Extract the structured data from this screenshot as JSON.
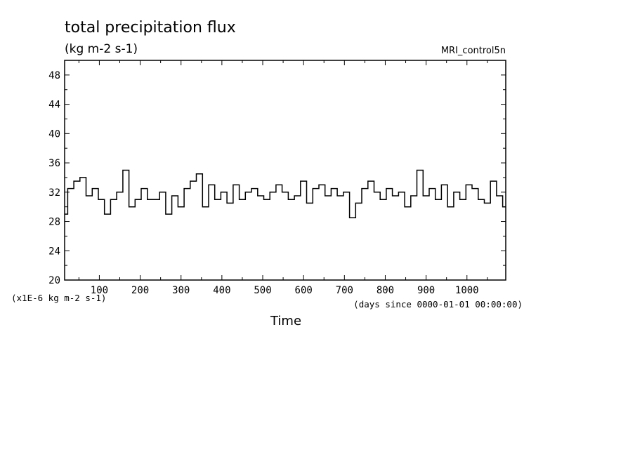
{
  "chart_data": {
    "type": "line",
    "title": "total precipitation flux",
    "units": "(kg m-2 s-1)",
    "dataset": "MRI_control5n",
    "xlabel": "Time",
    "x_units": "(days since 0000-01-01 00:00:00)",
    "y_scale_note": "(x1E-6 kg m-2 s-1)",
    "xlim": [
      15,
      1095
    ],
    "ylim": [
      20,
      50
    ],
    "x_ticks": [
      100,
      200,
      300,
      400,
      500,
      600,
      700,
      800,
      900,
      1000
    ],
    "x_tick_labels": [
      "100",
      "200",
      "300",
      "400",
      "500",
      "600",
      "700",
      "800",
      "900",
      "1000"
    ],
    "y_ticks": [
      20,
      24,
      28,
      32,
      36,
      40,
      44,
      48
    ],
    "y_tick_labels": [
      "20",
      "24",
      "28",
      "32",
      "36",
      "40",
      "44",
      "48"
    ],
    "grid": false,
    "series": [
      {
        "color": "#000000",
        "x": [
          15,
          30,
          45,
          60,
          75,
          90,
          105,
          120,
          135,
          150,
          165,
          180,
          195,
          210,
          225,
          240,
          255,
          270,
          285,
          300,
          315,
          330,
          345,
          360,
          375,
          390,
          405,
          420,
          435,
          450,
          465,
          480,
          495,
          510,
          525,
          540,
          555,
          570,
          585,
          600,
          615,
          630,
          645,
          660,
          675,
          690,
          705,
          720,
          735,
          750,
          765,
          780,
          795,
          810,
          825,
          840,
          855,
          870,
          885,
          900,
          915,
          930,
          945,
          960,
          975,
          990,
          1005,
          1020,
          1035,
          1050,
          1065,
          1080,
          1095
        ],
        "values": [
          29.0,
          32.5,
          33.5,
          34.0,
          31.5,
          32.5,
          31.0,
          29.0,
          31.0,
          32.0,
          35.0,
          30.0,
          31.0,
          32.5,
          31.0,
          31.0,
          32.0,
          29.0,
          31.5,
          30.0,
          32.5,
          33.5,
          34.5,
          30.0,
          33.0,
          31.0,
          32.0,
          30.5,
          33.0,
          31.0,
          32.0,
          32.5,
          31.5,
          31.0,
          32.0,
          33.0,
          32.0,
          31.0,
          31.5,
          33.5,
          30.5,
          32.5,
          33.0,
          31.5,
          32.5,
          31.5,
          32.0,
          28.5,
          30.5,
          32.5,
          33.5,
          32.0,
          31.0,
          32.5,
          31.5,
          32.0,
          30.0,
          31.5,
          35.0,
          31.5,
          32.5,
          31.0,
          33.0,
          30.0,
          32.0,
          31.0,
          33.0,
          32.5,
          31.0,
          30.5,
          33.5,
          31.5,
          30.0
        ]
      }
    ]
  }
}
